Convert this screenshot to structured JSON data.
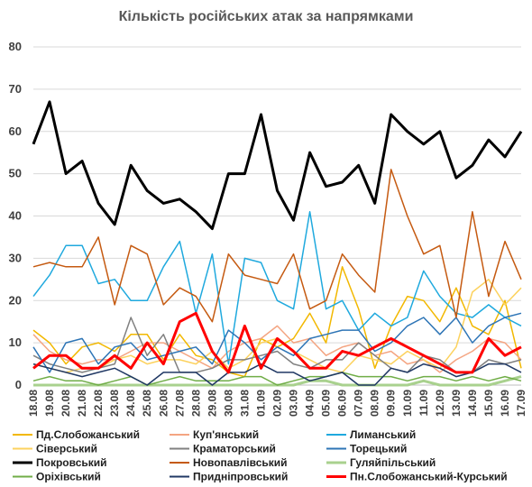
{
  "chart_data": {
    "type": "line",
    "title": "Кількість російських атак за напрямками",
    "xlabel": "",
    "ylabel": "",
    "ylim": [
      0,
      80
    ],
    "yticks": [
      0,
      10,
      20,
      30,
      40,
      50,
      60,
      70,
      80
    ],
    "grid": "horizontal",
    "legend": "bottom",
    "x": [
      "18.08",
      "19.08",
      "20.08",
      "21.08",
      "22.08",
      "23.08",
      "24.08",
      "25.08",
      "26.08",
      "27.08",
      "28.08",
      "29.08",
      "30.08",
      "31.08",
      "01.09",
      "02.09",
      "03.09",
      "04.09",
      "05.09",
      "06.09",
      "07.09",
      "08.09",
      "09.09",
      "10.09",
      "11.09",
      "12.09",
      "13.09",
      "14.09",
      "15.09",
      "16.09",
      "17.09"
    ],
    "series": [
      {
        "name": "Пд.Слобожанський",
        "color": "#F2B800",
        "width": 1.5,
        "values": [
          13,
          10,
          5,
          9,
          10,
          8,
          12,
          12,
          6,
          12,
          7,
          6,
          3,
          2,
          11,
          9,
          11,
          17,
          10,
          28,
          18,
          4,
          14,
          21,
          20,
          15,
          23,
          14,
          12,
          20,
          4
        ]
      },
      {
        "name": "Куп'янський",
        "color": "#F4A582",
        "width": 1.5,
        "values": [
          12,
          8,
          6,
          5,
          6,
          6,
          8,
          10,
          10,
          8,
          6,
          4,
          8,
          10,
          11,
          14,
          10,
          11,
          7,
          9,
          10,
          7,
          8,
          5,
          6,
          3,
          6,
          8,
          11,
          10,
          6
        ]
      },
      {
        "name": "Лиманський",
        "color": "#1FA9DE",
        "width": 1.5,
        "values": [
          21,
          26,
          33,
          33,
          24,
          25,
          20,
          20,
          28,
          34,
          17,
          31,
          5,
          30,
          29,
          20,
          18,
          41,
          18,
          20,
          13,
          17,
          14,
          16,
          27,
          21,
          17,
          16,
          19,
          16,
          14
        ]
      },
      {
        "name": "Сіверський",
        "color": "#FCD25E",
        "width": 1.5,
        "values": [
          5,
          4,
          3,
          4,
          4,
          6,
          7,
          5,
          6,
          6,
          5,
          8,
          4,
          6,
          10,
          11,
          8,
          6,
          4,
          3,
          7,
          6,
          5,
          8,
          6,
          4,
          9,
          22,
          25,
          19,
          23
        ]
      },
      {
        "name": "Краматорський",
        "color": "#808080",
        "width": 1.5,
        "values": [
          7,
          5,
          4,
          3,
          4,
          5,
          16,
          7,
          12,
          3,
          3,
          4,
          6,
          6,
          7,
          8,
          5,
          4,
          6,
          6,
          10,
          7,
          4,
          3,
          7,
          6,
          3,
          3,
          6,
          5,
          6
        ]
      },
      {
        "name": "Торецький",
        "color": "#2E75B6",
        "width": 1.5,
        "values": [
          9,
          3,
          10,
          11,
          5,
          9,
          10,
          6,
          7,
          8,
          9,
          5,
          13,
          10,
          6,
          9,
          7,
          11,
          12,
          13,
          13,
          8,
          10,
          14,
          16,
          12,
          16,
          10,
          14,
          16,
          17
        ]
      },
      {
        "name": "Покровський",
        "color": "#000000",
        "width": 3,
        "values": [
          57,
          67,
          50,
          53,
          43,
          38,
          52,
          46,
          43,
          44,
          41,
          37,
          50,
          50,
          64,
          46,
          39,
          55,
          47,
          48,
          52,
          43,
          64,
          60,
          57,
          60,
          49,
          52,
          58,
          54,
          60
        ]
      },
      {
        "name": "Новопавлівський",
        "color": "#C55A11",
        "width": 1.5,
        "values": [
          28,
          29,
          28,
          28,
          35,
          19,
          33,
          31,
          19,
          23,
          21,
          15,
          31,
          26,
          25,
          24,
          31,
          18,
          20,
          31,
          26,
          22,
          51,
          40,
          31,
          33,
          16,
          41,
          21,
          34,
          25
        ]
      },
      {
        "name": "Гуляйпільський",
        "color": "#A9D18E",
        "width": 3,
        "values": [
          0,
          0,
          0,
          0,
          0,
          0,
          0,
          0,
          0,
          0,
          0,
          0,
          0,
          0,
          0,
          0,
          0,
          1,
          1,
          0,
          0,
          0,
          0,
          0,
          1,
          0,
          0,
          0,
          0,
          1,
          2
        ]
      },
      {
        "name": "Оріхівський",
        "color": "#70AD47",
        "width": 1.5,
        "values": [
          1,
          2,
          1,
          1,
          0,
          1,
          2,
          0,
          1,
          2,
          1,
          1,
          1,
          2,
          2,
          0,
          1,
          2,
          2,
          3,
          2,
          2,
          2,
          1,
          2,
          2,
          1,
          2,
          1,
          2,
          1
        ]
      },
      {
        "name": "Придніпровський",
        "color": "#203864",
        "width": 1.5,
        "values": [
          5,
          4,
          3,
          2,
          3,
          4,
          2,
          0,
          3,
          3,
          3,
          0,
          3,
          3,
          5,
          3,
          3,
          1,
          2,
          3,
          0,
          0,
          4,
          3,
          5,
          4,
          2,
          3,
          5,
          5,
          3
        ]
      },
      {
        "name": "Пн.Слобожанський-Курський",
        "color": "#FF0000",
        "width": 3,
        "values": [
          4,
          7,
          7,
          4,
          4,
          7,
          4,
          10,
          5,
          15,
          17,
          8,
          3,
          14,
          4,
          11,
          8,
          4,
          4,
          8,
          7,
          9,
          11,
          9,
          7,
          5,
          3,
          3,
          11,
          7,
          9
        ]
      }
    ]
  }
}
